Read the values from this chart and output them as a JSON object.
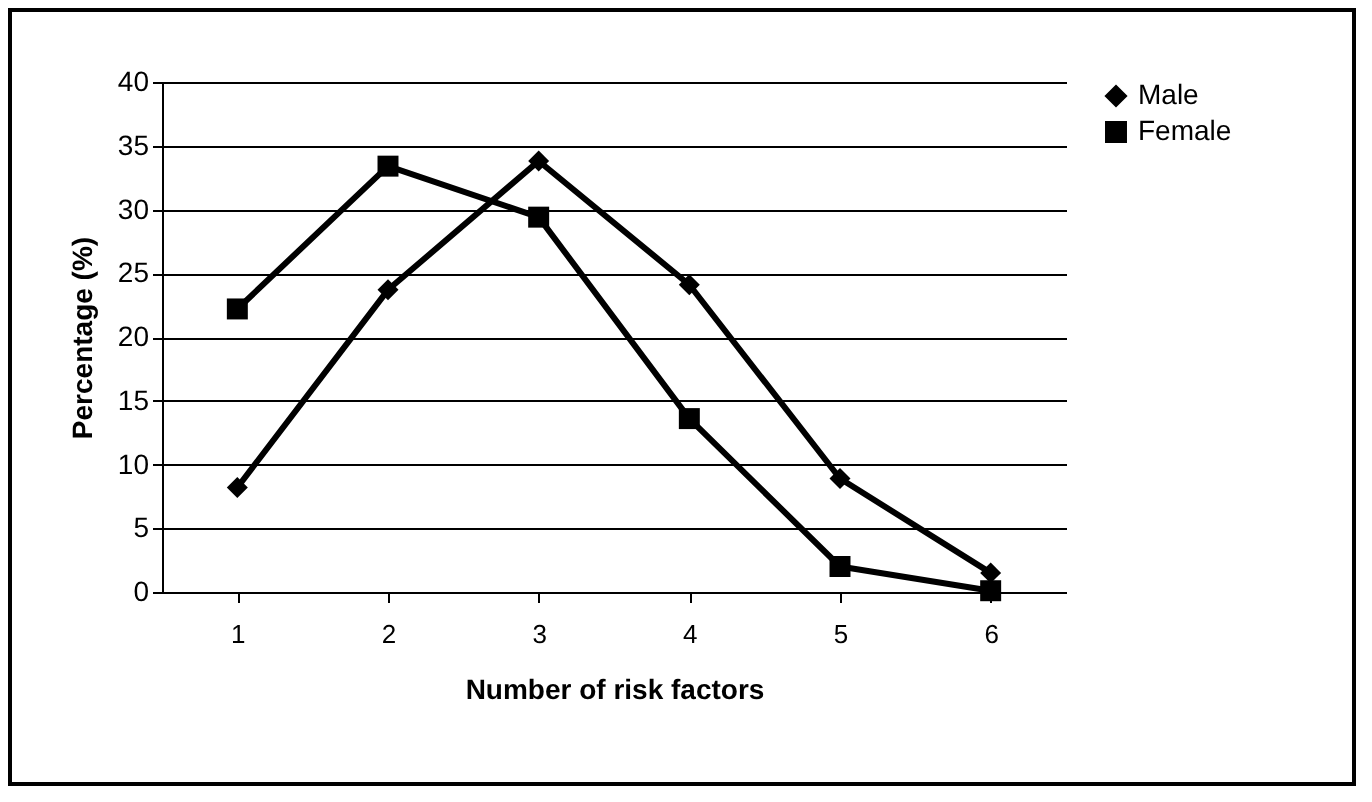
{
  "chart_data": {
    "type": "line",
    "xlabel": "Number of risk factors",
    "ylabel": "Percentage (%)",
    "categories": [
      "1",
      "2",
      "3",
      "4",
      "5",
      "6"
    ],
    "series": [
      {
        "name": "Male",
        "color": "#000000",
        "marker": "diamond",
        "values": [
          8.2,
          23.7,
          33.8,
          24.1,
          8.9,
          1.5
        ]
      },
      {
        "name": "Female",
        "color": "#000000",
        "marker": "square",
        "values": [
          22.2,
          33.4,
          29.4,
          13.6,
          2.0,
          0.1
        ]
      }
    ],
    "ylim": [
      0,
      40
    ],
    "yticks": [
      0,
      5,
      10,
      15,
      20,
      25,
      30,
      35,
      40
    ],
    "grid": "y",
    "legend": "right",
    "line_style": "solid"
  }
}
